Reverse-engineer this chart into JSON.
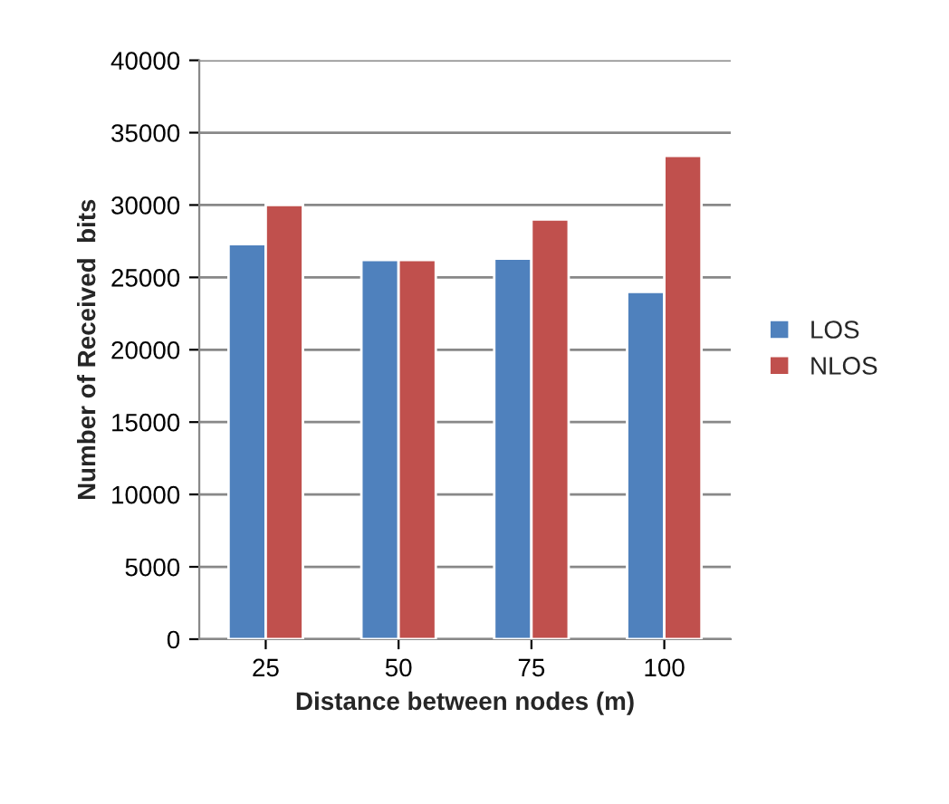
{
  "chart_data": {
    "type": "bar",
    "xlabel": "Distance between nodes (m)",
    "ylabel": "Number of Received  bits",
    "categories": [
      "25",
      "50",
      "75",
      "100"
    ],
    "series": [
      {
        "name": "LOS",
        "color": "#4f81bd",
        "values": [
          27300,
          26200,
          26300,
          24000
        ]
      },
      {
        "name": "NLOS",
        "color": "#c0504d",
        "values": [
          30000,
          26200,
          29000,
          33400
        ]
      }
    ],
    "ylim": [
      0,
      40000
    ],
    "yticks": [
      0,
      5000,
      10000,
      15000,
      20000,
      25000,
      30000,
      35000,
      40000
    ],
    "grid": "y",
    "legend": "right"
  }
}
